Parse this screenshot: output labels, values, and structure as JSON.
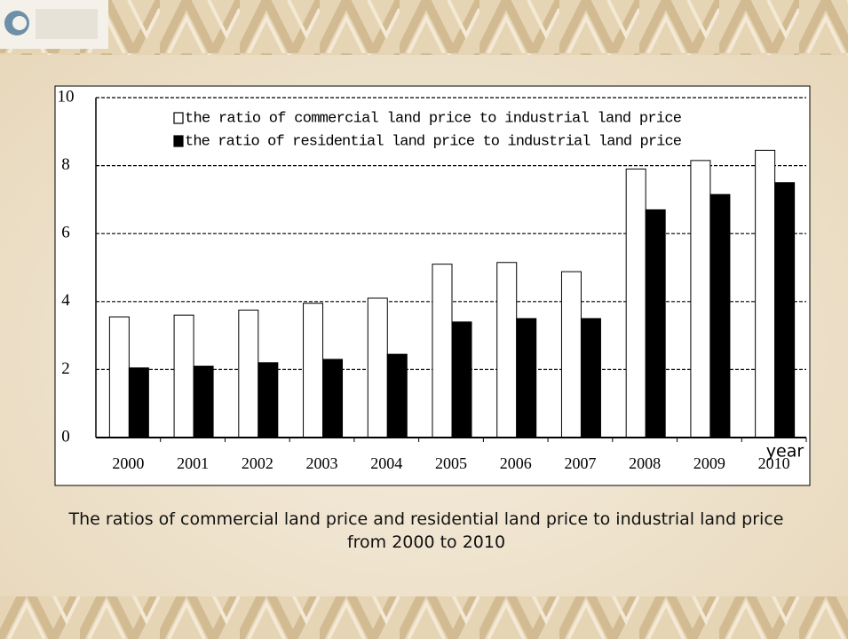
{
  "chart_data": {
    "type": "bar",
    "title": "The ratios of commercial land price and residential land price to industrial land price from 2000 to 2010",
    "x_label": "year",
    "categories": [
      "2000",
      "2001",
      "2002",
      "2003",
      "2004",
      "2005",
      "2006",
      "2007",
      "2008",
      "2009",
      "2010"
    ],
    "series": [
      {
        "name": "the ratio of commercial land price to industrial land price",
        "color": "#ffffff",
        "values": [
          3.55,
          3.6,
          3.75,
          3.95,
          4.1,
          5.1,
          5.15,
          4.88,
          7.9,
          8.15,
          8.45
        ]
      },
      {
        "name": "the ratio of residential land price to industrial land price",
        "color": "#000000",
        "values": [
          2.05,
          2.1,
          2.2,
          2.3,
          2.45,
          3.4,
          3.5,
          3.5,
          6.7,
          7.15,
          7.5
        ]
      }
    ],
    "ylim": [
      0,
      10
    ],
    "yticks": [
      0,
      2,
      4,
      6,
      8,
      10
    ],
    "grid": true,
    "legend": "upper left"
  }
}
